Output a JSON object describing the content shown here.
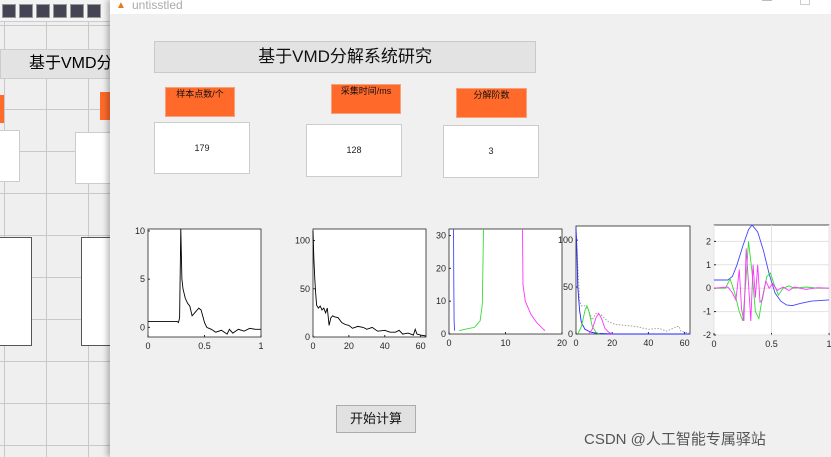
{
  "background_editor": {
    "title": "基于VMD分"
  },
  "window": {
    "title": "untisstled",
    "icon": "matlab-icon"
  },
  "main": {
    "title": "基于VMD分解系统研究",
    "fields": [
      {
        "label": "样本点数/个",
        "value": "179"
      },
      {
        "label": "采集时间/ms",
        "value": "128"
      },
      {
        "label": "分解阶数",
        "value": "3"
      }
    ],
    "start_button": "开始计算"
  },
  "watermark": "CSDN @人工智能专属驿站",
  "chart_data": [
    {
      "type": "line",
      "xlim": [
        0,
        1
      ],
      "ylim": [
        -1,
        10.2
      ],
      "xticks": [
        "0",
        "0.5",
        "1"
      ],
      "yticks": [
        "0",
        "5",
        "10"
      ],
      "grid": false,
      "series": [
        {
          "color": "#000000",
          "x": [
            0,
            0.26,
            0.27,
            0.28,
            0.29,
            0.3,
            0.31,
            0.33,
            0.35,
            0.37,
            0.39,
            0.42,
            0.45,
            0.47,
            0.5,
            0.52,
            0.56,
            0.6,
            0.65,
            0.7,
            0.72,
            0.75,
            0.8,
            0.85,
            0.9,
            0.95,
            1
          ],
          "y": [
            0.6,
            0.6,
            0.5,
            1,
            10.2,
            5,
            4,
            3,
            2.5,
            2.2,
            1.2,
            1.6,
            2,
            1.8,
            0.5,
            0,
            -0.2,
            -0.5,
            -0.3,
            -0.7,
            -0.2,
            -0.6,
            -0.2,
            -0.4,
            -0.1,
            -0.2,
            -0.2
          ]
        }
      ]
    },
    {
      "type": "line",
      "xlim": [
        0,
        63
      ],
      "ylim": [
        0,
        112
      ],
      "xticks": [
        "0",
        "20",
        "40",
        "60"
      ],
      "yticks": [
        "0",
        "50",
        "100"
      ],
      "grid": false,
      "series": [
        {
          "color": "#000000",
          "x": [
            0,
            0.5,
            1,
            1.5,
            2,
            3,
            4,
            5,
            6,
            7,
            8,
            9,
            10,
            11,
            12,
            14,
            16,
            18,
            20,
            22,
            25,
            28,
            30,
            33,
            36,
            40,
            43,
            46,
            48,
            50,
            53,
            56,
            57,
            58,
            60,
            63
          ],
          "y": [
            110,
            80,
            60,
            45,
            33,
            30,
            32,
            28,
            30,
            25,
            30,
            12,
            20,
            22,
            21,
            20,
            15,
            13,
            12,
            9,
            11,
            10,
            8,
            10,
            6,
            7,
            5,
            5,
            7,
            3,
            4,
            2,
            8,
            3,
            2,
            1
          ]
        }
      ]
    },
    {
      "type": "line",
      "xlim": [
        0,
        20
      ],
      "ylim": [
        0,
        32
      ],
      "xticks": [
        "0",
        "10",
        "20"
      ],
      "yticks": [
        "0",
        "10",
        "20",
        "30"
      ],
      "grid": false,
      "series": [
        {
          "color": "#4444ff",
          "x": [
            1,
            0.9,
            0.85,
            0.8
          ],
          "y": [
            1,
            4,
            15,
            32
          ]
        },
        {
          "color": "#33dd33",
          "x": [
            1.8,
            3,
            4.5,
            5.5,
            5.9,
            6,
            6.1
          ],
          "y": [
            1,
            1.5,
            2,
            4,
            9,
            20,
            32
          ]
        },
        {
          "color": "#ff33ff",
          "x": [
            13,
            13.1,
            13.5,
            14.5,
            15.5,
            16.5,
            17
          ],
          "y": [
            32,
            15,
            10,
            6,
            3.5,
            1.8,
            1
          ]
        }
      ]
    },
    {
      "type": "line",
      "xlim": [
        0,
        63
      ],
      "ylim": [
        0,
        115
      ],
      "xticks": [
        "0",
        "20",
        "40",
        "60"
      ],
      "yticks": [
        "0",
        "50",
        "100"
      ],
      "grid": false,
      "series": [
        {
          "color": "#999999",
          "dash": true,
          "x": [
            0,
            2,
            3,
            5,
            7,
            9,
            11,
            14,
            18,
            22,
            28,
            33,
            40,
            46,
            50,
            56,
            57,
            58,
            60,
            63
          ],
          "y": [
            110,
            35,
            30,
            30,
            25,
            15,
            22,
            20,
            13,
            10,
            9,
            8,
            5,
            6,
            3,
            8,
            8,
            3,
            2,
            1
          ]
        },
        {
          "color": "#2222ff",
          "x": [
            0,
            0.5,
            1,
            2,
            3,
            5,
            8,
            12,
            20,
            63
          ],
          "y": [
            112,
            90,
            50,
            25,
            12,
            5,
            2,
            0.5,
            0,
            0
          ]
        },
        {
          "color": "#33dd33",
          "x": [
            1,
            3,
            5,
            6,
            7,
            9,
            11,
            13
          ],
          "y": [
            0,
            8,
            25,
            30,
            25,
            8,
            2,
            0
          ]
        },
        {
          "color": "#ff33ff",
          "x": [
            7,
            9,
            11,
            12.5,
            14,
            16,
            18,
            20
          ],
          "y": [
            0,
            5,
            17,
            22,
            17,
            6,
            2,
            0
          ]
        }
      ]
    },
    {
      "type": "line",
      "xlim": [
        0,
        1
      ],
      "ylim": [
        -2,
        2.7
      ],
      "xticks": [
        "0",
        "0.5",
        "1"
      ],
      "yticks": [
        "-2",
        "-1",
        "0",
        "1",
        "2"
      ],
      "grid": true,
      "series": [
        {
          "color": "#4444ff",
          "x": [
            0,
            0.12,
            0.16,
            0.2,
            0.25,
            0.3,
            0.33,
            0.38,
            0.43,
            0.48,
            0.53,
            0.58,
            0.63,
            0.68,
            0.75,
            0.85,
            1
          ],
          "y": [
            0.35,
            0.35,
            0.5,
            1,
            1.8,
            2.5,
            2.7,
            2.4,
            1.6,
            0.6,
            -0.2,
            -0.55,
            -0.72,
            -0.75,
            -0.65,
            -0.55,
            -0.5
          ]
        },
        {
          "color": "#33dd33",
          "x": [
            0,
            0.1,
            0.14,
            0.18,
            0.22,
            0.25,
            0.28,
            0.3,
            0.33,
            0.36,
            0.39,
            0.42,
            0.46,
            0.49,
            0.52,
            0.56,
            0.6,
            0.65,
            0.7,
            0.8,
            0.9,
            1
          ],
          "y": [
            0,
            0,
            0.4,
            -0.2,
            -1,
            -1.4,
            0.5,
            2,
            0.7,
            -1,
            -1.3,
            -0.4,
            0.5,
            0.65,
            0.2,
            -0.3,
            0,
            0.1,
            0,
            0.05,
            0,
            0
          ]
        },
        {
          "color": "#ff33ff",
          "x": [
            0,
            0.12,
            0.16,
            0.19,
            0.22,
            0.24,
            0.26,
            0.28,
            0.3,
            0.32,
            0.34,
            0.36,
            0.38,
            0.4,
            0.42,
            0.45,
            0.48,
            0.51,
            0.55,
            0.6,
            0.65,
            0.7,
            0.8,
            0.9,
            1
          ],
          "y": [
            0,
            0.05,
            -0.2,
            -0.5,
            0.8,
            -0.9,
            -1.4,
            1.7,
            0.2,
            -1.4,
            1,
            -0.4,
            1,
            -0.6,
            -0.5,
            0.3,
            0,
            0.2,
            -0.1,
            0.05,
            -0.1,
            0.05,
            -0.05,
            0.02,
            0
          ]
        }
      ]
    }
  ]
}
